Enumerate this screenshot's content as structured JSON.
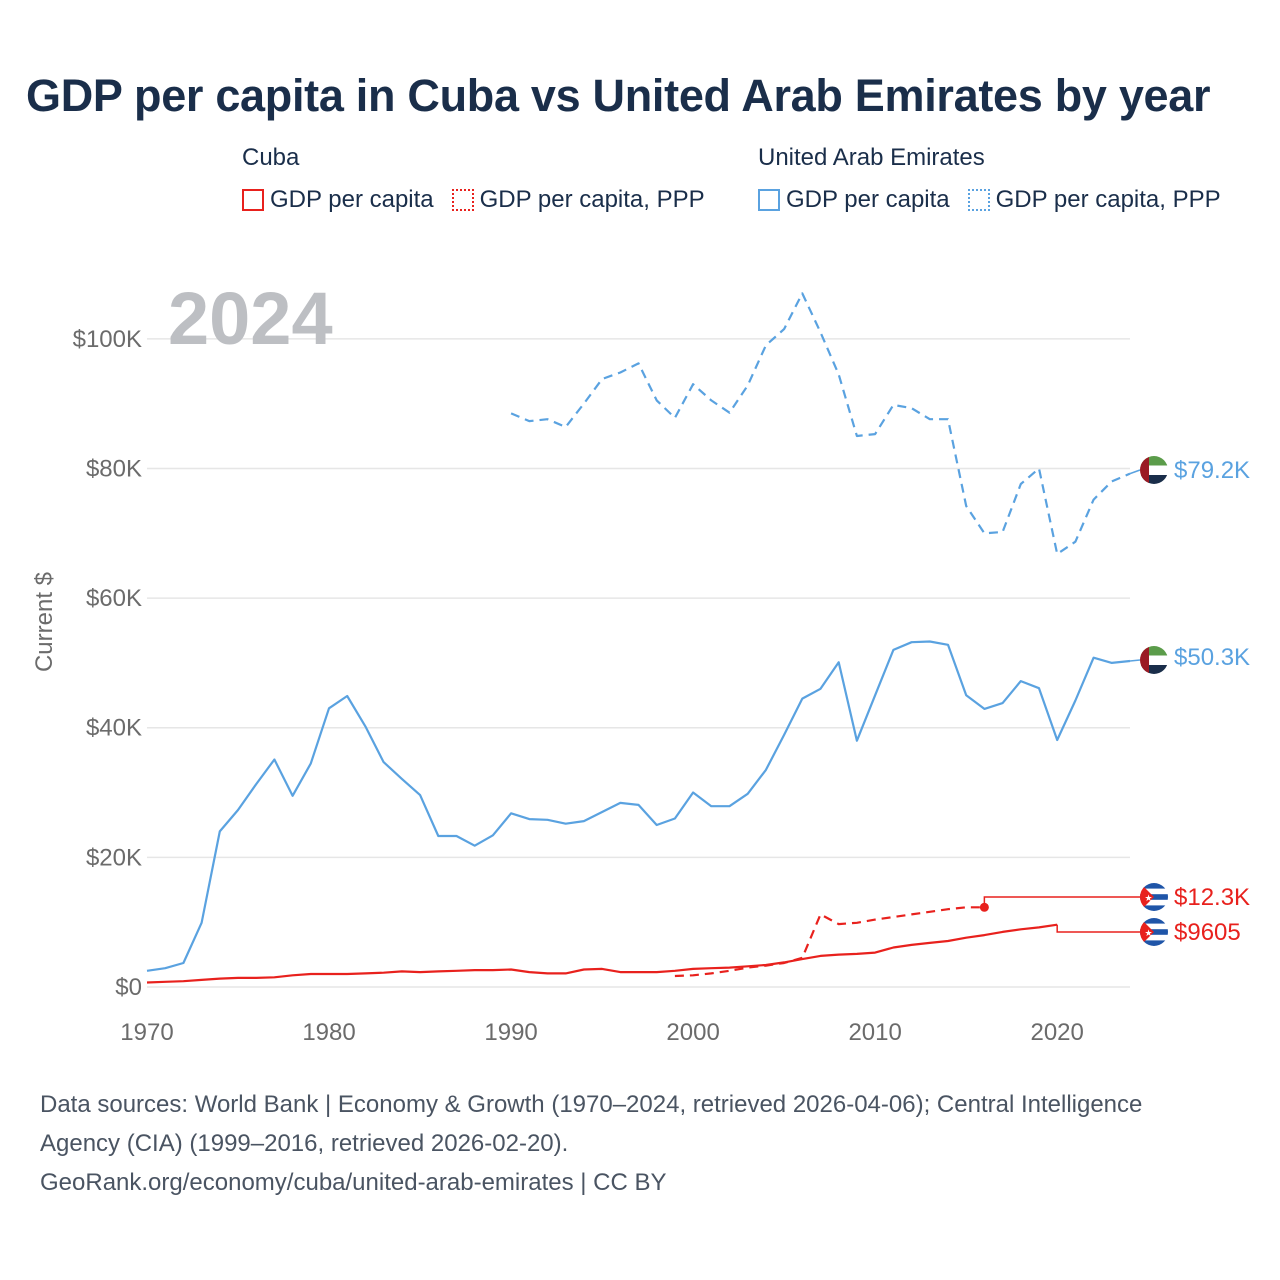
{
  "title": "GDP per capita in Cuba vs United Arab Emirates by year",
  "legend": {
    "cuba": {
      "heading": "Cuba",
      "solid_label": "GDP per capita",
      "dotted_label": "GDP per capita, PPP"
    },
    "uae": {
      "heading": "United Arab Emirates",
      "solid_label": "GDP per capita",
      "dotted_label": "GDP per capita, PPP"
    }
  },
  "colors": {
    "cuba": "#e8211d",
    "uae": "#5aa2e0",
    "grid": "#e6e6e6",
    "year": "#bdbfc3",
    "axis_text": "#6b6b6b"
  },
  "footer": {
    "line1": "Data sources: World Bank | Economy & Growth (1970–2024, retrieved 2026-04-06); Central Intelligence",
    "line2": "Agency (CIA) (1999–2016, retrieved 2026-02-20).",
    "line3": "GeoRank.org/economy/cuba/united-arab-emirates | CC BY"
  },
  "chart_data": {
    "type": "line",
    "current_year_label": "2024",
    "ylabel": "Current $",
    "xlabel": "",
    "xlim": [
      1970,
      2024
    ],
    "ylim": [
      0,
      110000
    ],
    "x_ticks": [
      1970,
      1980,
      1990,
      2000,
      2010,
      2020
    ],
    "x_tick_labels": [
      "1970",
      "1980",
      "1990",
      "2000",
      "2010",
      "2020"
    ],
    "y_ticks": [
      0,
      20000,
      40000,
      60000,
      80000,
      100000
    ],
    "y_tick_labels": [
      "$0",
      "$20K",
      "$40K",
      "$60K",
      "$80K",
      "$100K"
    ],
    "series": [
      {
        "name": "United Arab Emirates — GDP per capita, PPP",
        "key": "uae_ppp",
        "color": "#5aa2e0",
        "style": "dashed",
        "x": [
          1990,
          1991,
          1992,
          1993,
          1994,
          1995,
          1996,
          1997,
          1998,
          1999,
          2000,
          2001,
          2002,
          2003,
          2004,
          2005,
          2006,
          2007,
          2008,
          2009,
          2010,
          2011,
          2012,
          2013,
          2014,
          2015,
          2016,
          2017,
          2018,
          2019,
          2020,
          2021,
          2022,
          2023,
          2024
        ],
        "values": [
          88500,
          87300,
          87600,
          86400,
          90000,
          93800,
          94800,
          96200,
          90500,
          87800,
          93000,
          90500,
          88600,
          92800,
          99000,
          101500,
          107000,
          101000,
          94500,
          85000,
          85300,
          89800,
          89300,
          87600,
          87600,
          74200,
          70000,
          70200,
          77600,
          80000,
          66800,
          68700,
          75200,
          78000,
          79200
        ],
        "end_label": "$79.2K"
      },
      {
        "name": "United Arab Emirates — GDP per capita",
        "key": "uae_gdp",
        "color": "#5aa2e0",
        "style": "solid",
        "x": [
          1970,
          1971,
          1972,
          1973,
          1974,
          1975,
          1976,
          1977,
          1978,
          1979,
          1980,
          1981,
          1982,
          1983,
          1984,
          1985,
          1986,
          1987,
          1988,
          1989,
          1990,
          1991,
          1992,
          1993,
          1994,
          1995,
          1996,
          1997,
          1998,
          1999,
          2000,
          2001,
          2002,
          2003,
          2004,
          2005,
          2006,
          2007,
          2008,
          2009,
          2010,
          2011,
          2012,
          2013,
          2014,
          2015,
          2016,
          2017,
          2018,
          2019,
          2020,
          2021,
          2022,
          2023,
          2024
        ],
        "values": [
          2500,
          2900,
          3700,
          9900,
          24000,
          27300,
          31300,
          35100,
          29500,
          34500,
          43000,
          44900,
          40200,
          34700,
          32100,
          29600,
          23300,
          23300,
          21800,
          23400,
          26800,
          25900,
          25800,
          25200,
          25600,
          27000,
          28400,
          28100,
          25000,
          26000,
          30000,
          27900,
          27900,
          29800,
          33500,
          38900,
          44500,
          46000,
          50100,
          38000,
          45000,
          52000,
          53200,
          53300,
          52800,
          45000,
          42900,
          43800,
          47200,
          46100,
          38100,
          44200,
          50800,
          50000,
          50300
        ],
        "end_label": "$50.3K"
      },
      {
        "name": "Cuba — GDP per capita, PPP",
        "key": "cuba_ppp",
        "color": "#e8211d",
        "style": "dashed",
        "x": [
          1999,
          2000,
          2001,
          2002,
          2003,
          2004,
          2005,
          2006,
          2007,
          2008,
          2009,
          2010,
          2011,
          2012,
          2013,
          2014,
          2015,
          2016
        ],
        "values": [
          1700,
          1800,
          2100,
          2500,
          3000,
          3300,
          3700,
          4500,
          11200,
          9700,
          9900,
          10400,
          10800,
          11200,
          11600,
          12000,
          12300,
          12300
        ],
        "end_label": "$12.3K"
      },
      {
        "name": "Cuba — GDP per capita",
        "key": "cuba_gdp",
        "color": "#e8211d",
        "style": "solid",
        "x": [
          1970,
          1971,
          1972,
          1973,
          1974,
          1975,
          1976,
          1977,
          1978,
          1979,
          1980,
          1981,
          1982,
          1983,
          1984,
          1985,
          1986,
          1987,
          1988,
          1989,
          1990,
          1991,
          1992,
          1993,
          1994,
          1995,
          1996,
          1997,
          1998,
          1999,
          2000,
          2001,
          2002,
          2003,
          2004,
          2005,
          2006,
          2007,
          2008,
          2009,
          2010,
          2011,
          2012,
          2013,
          2014,
          2015,
          2016,
          2017,
          2018,
          2019,
          2020
        ],
        "values": [
          700,
          800,
          900,
          1100,
          1300,
          1400,
          1400,
          1500,
          1800,
          2000,
          2000,
          2000,
          2100,
          2200,
          2400,
          2300,
          2400,
          2500,
          2600,
          2600,
          2700,
          2300,
          2100,
          2100,
          2700,
          2800,
          2300,
          2300,
          2300,
          2500,
          2800,
          2900,
          3000,
          3200,
          3400,
          3800,
          4300,
          4800,
          5000,
          5100,
          5300,
          6100,
          6500,
          6800,
          7100,
          7600,
          8000,
          8500,
          8900,
          9200,
          9605
        ],
        "end_label": "$9605"
      }
    ]
  }
}
